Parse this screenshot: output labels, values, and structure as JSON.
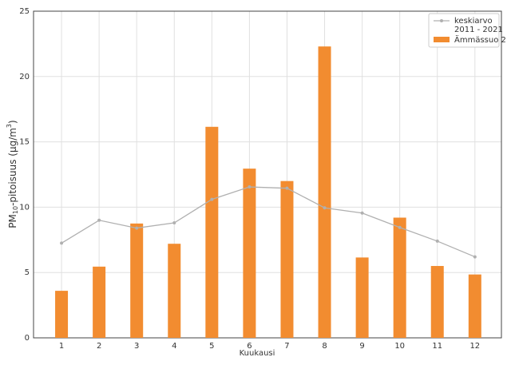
{
  "chart_data": {
    "type": "bar_line",
    "y_label": [
      "PM",
      "10",
      "-pitoisuus (µg/m",
      "3",
      ")"
    ],
    "x_label": "Kuukausi",
    "categories": [
      "1",
      "2",
      "3",
      "4",
      "5",
      "6",
      "7",
      "8",
      "9",
      "10",
      "11",
      "12"
    ],
    "series": [
      {
        "name": "keskiarvo\n2011 - 2021",
        "type": "line",
        "color": "#b0b0b0",
        "values": [
          7.25,
          9.0,
          8.4,
          8.8,
          10.6,
          11.55,
          11.45,
          9.95,
          9.55,
          8.45,
          7.4,
          6.2
        ]
      },
      {
        "name": "Ämmässuo 2",
        "type": "bar",
        "color": "#f28c30",
        "values": [
          3.6,
          5.45,
          8.75,
          7.2,
          16.15,
          12.95,
          12.0,
          22.3,
          6.15,
          9.2,
          5.5,
          4.85
        ]
      }
    ],
    "ylim": [
      0,
      25
    ],
    "yticks": [
      0,
      5,
      10,
      15,
      20,
      25
    ],
    "grid": true,
    "legend": "upper right"
  }
}
